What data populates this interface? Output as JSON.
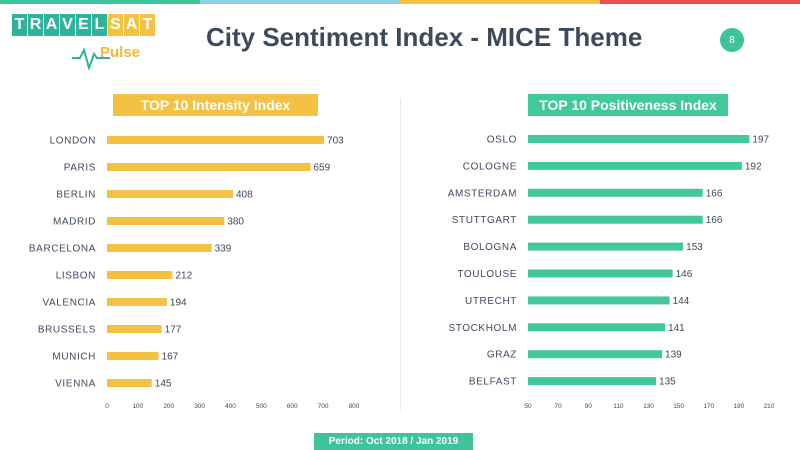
{
  "colors": {
    "top_bar": [
      "#3ec49a",
      "#8fd0e8",
      "#f3c244",
      "#e84f4f"
    ],
    "intensity_bar": "#f3c244",
    "positiveness_bar": "#43c79d",
    "accent_green": "#3ec49a",
    "title_text": "#3d4a5c"
  },
  "logo": {
    "letters": [
      "T",
      "R",
      "A",
      "V",
      "E",
      "L",
      "S",
      "A",
      "T"
    ],
    "sub": "Pulse"
  },
  "header": {
    "title": "City Sentiment Index - MICE Theme",
    "page_number": "8"
  },
  "footer": {
    "period": "Period: Oct 2018 / Jan 2019"
  },
  "chart_data": [
    {
      "type": "bar",
      "orientation": "horizontal",
      "title": "TOP 10 Intensity Index",
      "categories": [
        "LONDON",
        "PARIS",
        "BERLIN",
        "MADRID",
        "BARCELONA",
        "LISBON",
        "VALENCIA",
        "BRUSSELS",
        "MUNICH",
        "VIENNA"
      ],
      "values": [
        703,
        659,
        408,
        380,
        339,
        212,
        194,
        177,
        167,
        145
      ],
      "xlim": [
        0,
        800
      ],
      "xticks": [
        0,
        100,
        200,
        300,
        400,
        500,
        600,
        700,
        800
      ],
      "grid": false,
      "color": "#f3c244"
    },
    {
      "type": "bar",
      "orientation": "horizontal",
      "title": "TOP 10 Positiveness Index",
      "categories": [
        "OSLO",
        "COLOGNE",
        "AMSTERDAM",
        "STUTTGART",
        "BOLOGNA",
        "TOULOUSE",
        "UTRECHT",
        "STOCKHOLM",
        "GRAZ",
        "BELFAST"
      ],
      "values": [
        197,
        192,
        166,
        166,
        153,
        146,
        144,
        141,
        139,
        135
      ],
      "xlim": [
        50,
        210
      ],
      "xticks": [
        50,
        70,
        90,
        110,
        130,
        150,
        170,
        190,
        210
      ],
      "grid": false,
      "color": "#43c79d"
    }
  ]
}
